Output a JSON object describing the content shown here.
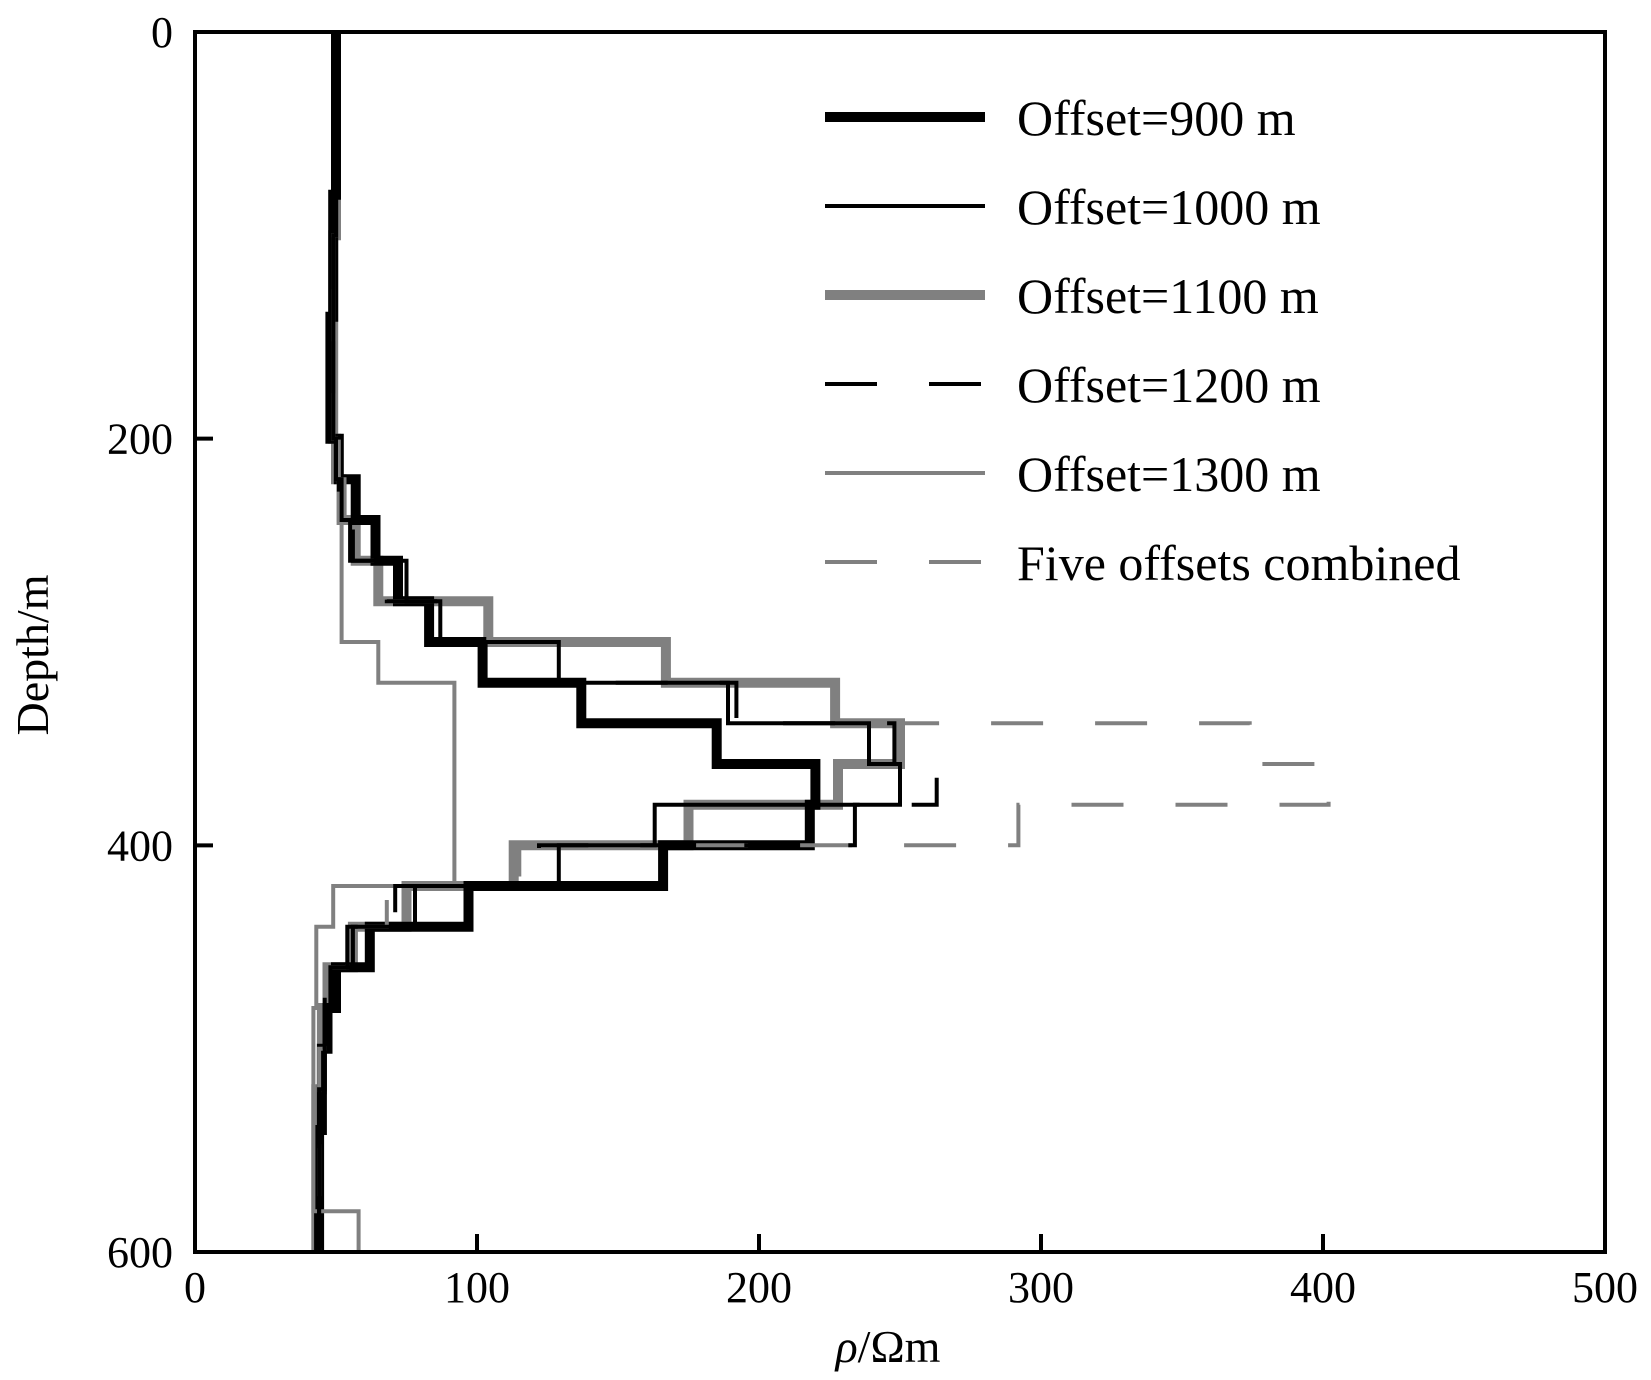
{
  "chart_data": {
    "type": "line",
    "orientation": "vertical-profile",
    "xlabel_prefix": "ρ",
    "xlabel_suffix": "/Ωm",
    "ylabel": "Depth/m",
    "xlim": [
      0,
      500
    ],
    "ylim": [
      0,
      600
    ],
    "y_inverted": true,
    "x_ticks": [
      "0",
      "100",
      "200",
      "300",
      "400",
      "500"
    ],
    "y_ticks": [
      "0",
      "200",
      "400",
      "600"
    ],
    "grid": false,
    "legend_position": "top-right",
    "series": [
      {
        "name": "Offset=900 m",
        "color": "#000000",
        "style": "solid-thick",
        "points": [
          [
            50,
            0
          ],
          [
            50,
            80
          ],
          [
            49,
            80
          ],
          [
            49,
            140
          ],
          [
            48,
            140
          ],
          [
            48,
            200
          ],
          [
            51,
            200
          ],
          [
            51,
            220
          ],
          [
            57,
            220
          ],
          [
            57,
            240
          ],
          [
            64,
            240
          ],
          [
            64,
            260
          ],
          [
            72,
            260
          ],
          [
            72,
            280
          ],
          [
            83,
            280
          ],
          [
            83,
            300
          ],
          [
            102,
            300
          ],
          [
            102,
            320
          ],
          [
            137,
            320
          ],
          [
            137,
            340
          ],
          [
            185,
            340
          ],
          [
            185,
            360
          ],
          [
            220,
            360
          ],
          [
            220,
            380
          ],
          [
            218,
            380
          ],
          [
            218,
            400
          ],
          [
            166,
            400
          ],
          [
            166,
            420
          ],
          [
            97,
            420
          ],
          [
            97,
            440
          ],
          [
            62,
            440
          ],
          [
            62,
            460
          ],
          [
            50,
            460
          ],
          [
            50,
            480
          ],
          [
            47,
            480
          ],
          [
            47,
            500
          ],
          [
            45,
            500
          ],
          [
            45,
            540
          ],
          [
            44,
            540
          ],
          [
            44,
            600
          ]
        ]
      },
      {
        "name": "Offset=1000 m",
        "color": "#000000",
        "style": "solid-thin",
        "points": [
          [
            50,
            0
          ],
          [
            50,
            100
          ],
          [
            49,
            100
          ],
          [
            49,
            200
          ],
          [
            50,
            200
          ],
          [
            50,
            220
          ],
          [
            52,
            220
          ],
          [
            52,
            240
          ],
          [
            55,
            240
          ],
          [
            55,
            260
          ],
          [
            75,
            260
          ],
          [
            75,
            280
          ],
          [
            87,
            280
          ],
          [
            87,
            300
          ],
          [
            129,
            300
          ],
          [
            129,
            320
          ],
          [
            189,
            320
          ],
          [
            189,
            340
          ],
          [
            239,
            340
          ],
          [
            239,
            360
          ],
          [
            250,
            360
          ],
          [
            250,
            380
          ],
          [
            163,
            380
          ],
          [
            163,
            400
          ],
          [
            129,
            400
          ],
          [
            129,
            420
          ],
          [
            78,
            420
          ],
          [
            78,
            440
          ],
          [
            56,
            440
          ],
          [
            56,
            460
          ],
          [
            48,
            460
          ],
          [
            48,
            480
          ],
          [
            46,
            480
          ],
          [
            46,
            520
          ],
          [
            44,
            520
          ],
          [
            44,
            600
          ]
        ]
      },
      {
        "name": "Offset=1100 m",
        "color": "#808080",
        "style": "solid-thick",
        "points": [
          [
            50,
            0
          ],
          [
            50,
            100
          ],
          [
            49,
            100
          ],
          [
            49,
            200
          ],
          [
            50,
            200
          ],
          [
            50,
            220
          ],
          [
            52,
            220
          ],
          [
            52,
            240
          ],
          [
            57,
            240
          ],
          [
            57,
            260
          ],
          [
            65,
            260
          ],
          [
            65,
            280
          ],
          [
            104,
            280
          ],
          [
            104,
            300
          ],
          [
            167,
            300
          ],
          [
            167,
            320
          ],
          [
            227,
            320
          ],
          [
            227,
            340
          ],
          [
            250,
            340
          ],
          [
            250,
            360
          ],
          [
            228,
            360
          ],
          [
            228,
            380
          ],
          [
            175,
            380
          ],
          [
            175,
            400
          ],
          [
            113,
            400
          ],
          [
            113,
            420
          ],
          [
            75,
            420
          ],
          [
            75,
            440
          ],
          [
            56,
            440
          ],
          [
            56,
            460
          ],
          [
            47,
            460
          ],
          [
            47,
            480
          ],
          [
            45,
            480
          ],
          [
            45,
            520
          ],
          [
            43,
            520
          ],
          [
            43,
            600
          ]
        ]
      },
      {
        "name": "Offset=1200 m",
        "color": "#000000",
        "style": "dashed",
        "points": [
          [
            50,
            0
          ],
          [
            50,
            100
          ],
          [
            49,
            100
          ],
          [
            49,
            200
          ],
          [
            50,
            200
          ],
          [
            50,
            220
          ],
          [
            51,
            220
          ],
          [
            51,
            240
          ],
          [
            56,
            240
          ],
          [
            56,
            260
          ],
          [
            68,
            260
          ],
          [
            68,
            280
          ],
          [
            90,
            280
          ],
          [
            90,
            300
          ],
          [
            111,
            300
          ],
          [
            111,
            320
          ],
          [
            192,
            320
          ],
          [
            192,
            340
          ],
          [
            248,
            340
          ],
          [
            248,
            360
          ],
          [
            263,
            360
          ],
          [
            263,
            380
          ],
          [
            234,
            380
          ],
          [
            234,
            400
          ],
          [
            122,
            400
          ],
          [
            122,
            420
          ],
          [
            71,
            420
          ],
          [
            71,
            440
          ],
          [
            54,
            440
          ],
          [
            54,
            460
          ],
          [
            46,
            460
          ],
          [
            46,
            500
          ],
          [
            44,
            500
          ],
          [
            44,
            600
          ]
        ]
      },
      {
        "name": "Offset=1300 m",
        "color": "#808080",
        "style": "solid-thin",
        "points": [
          [
            50,
            0
          ],
          [
            50,
            100
          ],
          [
            49,
            100
          ],
          [
            49,
            200
          ],
          [
            50,
            200
          ],
          [
            50,
            220
          ],
          [
            51,
            220
          ],
          [
            51,
            240
          ],
          [
            52,
            240
          ],
          [
            52,
            300
          ],
          [
            65,
            300
          ],
          [
            65,
            320
          ],
          [
            92,
            320
          ],
          [
            92,
            420
          ],
          [
            49,
            420
          ],
          [
            49,
            440
          ],
          [
            43,
            440
          ],
          [
            43,
            480
          ],
          [
            42,
            480
          ],
          [
            42,
            580
          ],
          [
            58,
            580
          ],
          [
            58,
            600
          ]
        ]
      },
      {
        "name": "Five offsets combined",
        "color": "#808080",
        "style": "dashed",
        "points": [
          [
            50,
            0
          ],
          [
            50,
            100
          ],
          [
            49,
            100
          ],
          [
            49,
            200
          ],
          [
            51,
            200
          ],
          [
            51,
            220
          ],
          [
            53,
            220
          ],
          [
            53,
            240
          ],
          [
            57,
            240
          ],
          [
            57,
            260
          ],
          [
            64,
            260
          ],
          [
            64,
            280
          ],
          [
            104,
            280
          ],
          [
            104,
            300
          ],
          [
            167,
            300
          ],
          [
            167,
            320
          ],
          [
            227,
            320
          ],
          [
            227,
            340
          ],
          [
            374,
            340
          ],
          [
            374,
            360
          ],
          [
            402,
            360
          ],
          [
            402,
            380
          ],
          [
            292,
            380
          ],
          [
            292,
            400
          ],
          [
            115,
            400
          ],
          [
            115,
            420
          ],
          [
            68,
            420
          ],
          [
            68,
            440
          ],
          [
            54,
            440
          ],
          [
            54,
            460
          ],
          [
            46,
            460
          ],
          [
            46,
            500
          ],
          [
            44,
            500
          ],
          [
            44,
            600
          ]
        ]
      }
    ]
  }
}
